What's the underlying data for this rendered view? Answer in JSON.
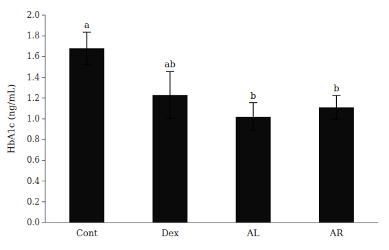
{
  "chart_data": {
    "type": "bar",
    "categories": [
      "Cont",
      "Dex",
      "AL",
      "AR"
    ],
    "values": [
      1.68,
      1.23,
      1.02,
      1.11
    ],
    "errors": [
      0.155,
      0.225,
      0.135,
      0.115
    ],
    "annotations": [
      "a",
      "ab",
      "b",
      "b"
    ],
    "color": "#0a0a0a",
    "ylabel": "HbA1c (ng/mL)",
    "ylim": [
      0.0,
      2.0
    ],
    "yticks": [
      {
        "value": 0.0,
        "label": "0.0"
      },
      0.2,
      0.4,
      0.6,
      0.8,
      {
        "value": 1.0,
        "label": "1.0"
      },
      1.2,
      1.4,
      1.6,
      1.8,
      {
        "value": 2.0,
        "label": "2.0"
      }
    ],
    "grid": false
  }
}
